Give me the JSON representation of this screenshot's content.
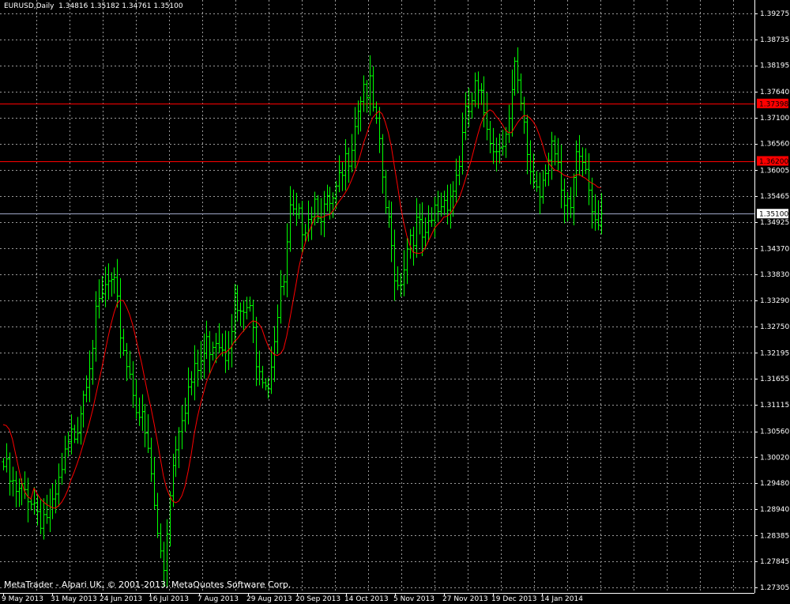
{
  "header": {
    "symbol": "EURUSD,Daily",
    "ohlc": "1.34816 1.35182 1.34761 1.35100"
  },
  "footer": {
    "copyright": "MetaTrader - Alpari UK, © 2001-2013, MetaQuotes Software Corp."
  },
  "colors": {
    "background": "#000000",
    "grid": "#9a9a9a",
    "bar": "#00ff00",
    "ma": "#ff0000",
    "hline": "#ff0000",
    "current_price": "#a0a8c8",
    "text": "#ffffff"
  },
  "chart_data": {
    "type": "ohlc",
    "symbol": "EURUSD",
    "timeframe": "Daily",
    "x_tick_labels": [
      "9 May 2013",
      "31 May 2013",
      "24 Jun 2013",
      "16 Jul 2013",
      "7 Aug 2013",
      "29 Aug 2013",
      "20 Sep 2013",
      "14 Oct 2013",
      "5 Nov 2013",
      "27 Nov 2013",
      "19 Dec 2013",
      "14 Jan 2014"
    ],
    "y_ticks": [
      1.39275,
      1.38735,
      1.38195,
      1.3764,
      1.371,
      1.3656,
      1.36005,
      1.35465,
      1.34925,
      1.3437,
      1.3383,
      1.3329,
      1.3275,
      1.32195,
      1.31655,
      1.31115,
      1.3056,
      1.3002,
      1.2948,
      1.2894,
      1.28385,
      1.27845,
      1.27305
    ],
    "y_tick_labels": [
      "1.39275",
      "1.38735",
      "1.38195",
      "1.37640",
      "1.37100",
      "1.36560",
      "1.36005",
      "1.35465",
      "1.34925",
      "1.34370",
      "1.33830",
      "1.33290",
      "1.32750",
      "1.32195",
      "1.31655",
      "1.31115",
      "1.30560",
      "1.30020",
      "1.29480",
      "1.28940",
      "1.28385",
      "1.27845",
      "1.27305"
    ],
    "ylim": [
      1.27305,
      1.395
    ],
    "grid": true,
    "horizontal_lines": [
      {
        "value": 1.37398,
        "label": "1.37398"
      },
      {
        "value": 1.362,
        "label": "1.36200"
      }
    ],
    "current_price": {
      "value": 1.351,
      "label": "1.35100"
    },
    "close_anchors": [
      [
        0,
        1.3
      ],
      [
        4,
        1.2935
      ],
      [
        8,
        1.295
      ],
      [
        12,
        1.29
      ],
      [
        16,
        1.29
      ],
      [
        20,
        1.301
      ],
      [
        24,
        1.31
      ],
      [
        27,
        1.32
      ],
      [
        30,
        1.33
      ],
      [
        32,
        1.335
      ],
      [
        34,
        1.338
      ],
      [
        36,
        1.336
      ],
      [
        39,
        1.325
      ],
      [
        43,
        1.314
      ],
      [
        46,
        1.306
      ],
      [
        48,
        1.298
      ],
      [
        50,
        1.285
      ],
      [
        52,
        1.279
      ],
      [
        54,
        1.296
      ],
      [
        57,
        1.31
      ],
      [
        60,
        1.316
      ],
      [
        63,
        1.32
      ],
      [
        66,
        1.325
      ],
      [
        69,
        1.328
      ],
      [
        72,
        1.325
      ],
      [
        75,
        1.334
      ],
      [
        77,
        1.33
      ],
      [
        79,
        1.333
      ],
      [
        80,
        1.331
      ],
      [
        82,
        1.324
      ],
      [
        85,
        1.319
      ],
      [
        86,
        1.318
      ],
      [
        88,
        1.328
      ],
      [
        91,
        1.338
      ],
      [
        93,
        1.352
      ],
      [
        95,
        1.35
      ],
      [
        98,
        1.352
      ],
      [
        101,
        1.356
      ],
      [
        104,
        1.353
      ],
      [
        107,
        1.354
      ],
      [
        110,
        1.36
      ],
      [
        112,
        1.366
      ],
      [
        115,
        1.376
      ],
      [
        117,
        1.38
      ],
      [
        119,
        1.378
      ],
      [
        121,
        1.37
      ],
      [
        123,
        1.36
      ],
      [
        124,
        1.354
      ],
      [
        126,
        1.345
      ],
      [
        128,
        1.338
      ],
      [
        130,
        1.343
      ],
      [
        132,
        1.349
      ],
      [
        134,
        1.35
      ],
      [
        137,
        1.346
      ],
      [
        140,
        1.353
      ],
      [
        143,
        1.356
      ],
      [
        146,
        1.358
      ],
      [
        148,
        1.364
      ],
      [
        150,
        1.372
      ],
      [
        153,
        1.378
      ],
      [
        156,
        1.374
      ],
      [
        158,
        1.37
      ],
      [
        160,
        1.366
      ],
      [
        162,
        1.37
      ],
      [
        164,
        1.372
      ],
      [
        166,
        1.382
      ],
      [
        168,
        1.374
      ],
      [
        170,
        1.365
      ],
      [
        172,
        1.36
      ],
      [
        174,
        1.358
      ],
      [
        176,
        1.364
      ],
      [
        178,
        1.368
      ],
      [
        180,
        1.36
      ],
      [
        182,
        1.352
      ],
      [
        184,
        1.354
      ],
      [
        186,
        1.366
      ],
      [
        189,
        1.365
      ],
      [
        190,
        1.359
      ],
      [
        192,
        1.353
      ],
      [
        193,
        1.35
      ],
      [
        194,
        1.35
      ]
    ],
    "bar_count": 195,
    "ma_period": 10,
    "ma_start": [
      1.307,
      1.3068,
      1.306,
      1.304,
      1.301,
      1.298,
      1.295,
      1.293,
      1.292,
      1.2915
    ]
  }
}
